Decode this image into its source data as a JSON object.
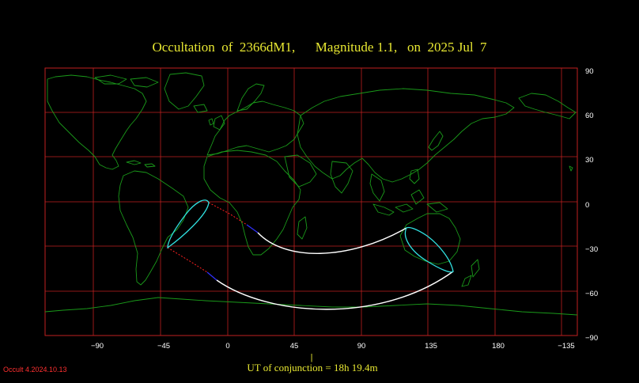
{
  "title": {
    "object": "Occultation  of  2366dM1,",
    "magnitude": "Magnitude 1.1,",
    "date": "on  2025 Jul  7"
  },
  "map": {
    "lon_labels": [
      "−90",
      "−45",
      "0",
      "45",
      "90",
      "135",
      "180",
      "−135"
    ],
    "lat_labels": [
      "90",
      "60",
      "30",
      "0",
      "−30",
      "−60",
      "−90"
    ],
    "colors": {
      "grid": "#c02020",
      "coast": "#1a9a1a",
      "path": "#ffffff",
      "limb": "#30e0e0",
      "dotted": "#ff2020",
      "blue": "#3030ff",
      "frame": "#c02020"
    }
  },
  "conjunction": {
    "label": "UT of conjunction = 18h 19.4m",
    "tick": "|"
  },
  "version": "Occult 4.2024.10.13"
}
